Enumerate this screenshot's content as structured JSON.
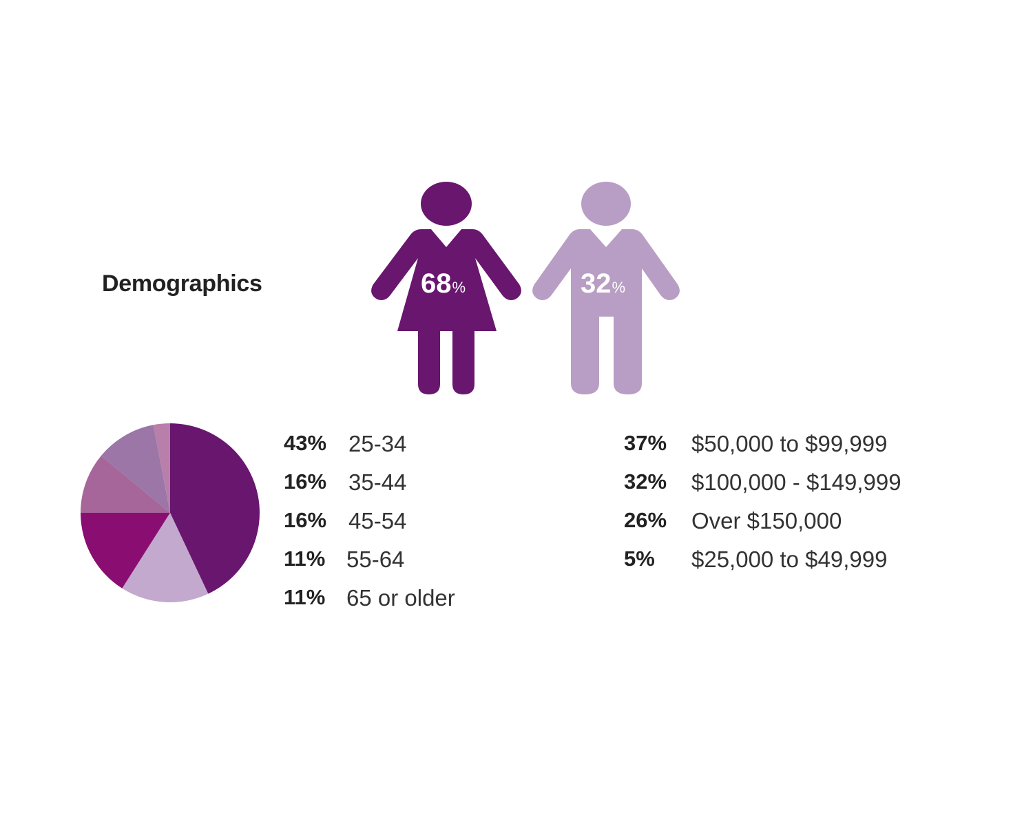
{
  "title": "Demographics",
  "colors": {
    "female": "#69166f",
    "male": "#b89ec4",
    "pie": [
      "#69166f",
      "#c2a9cd",
      "#8a0e72",
      "#a7669a",
      "#9b76a7",
      "#b87fab"
    ]
  },
  "gender": {
    "female": {
      "value": "68",
      "unit": "%"
    },
    "male": {
      "value": "32",
      "unit": "%"
    }
  },
  "chart_data": {
    "type": "pie",
    "categories": [
      "25-34",
      "35-44",
      "45-54",
      "55-64",
      "65 or older",
      ""
    ],
    "values": [
      43,
      16,
      16,
      11,
      11,
      3
    ],
    "start": "12 o'clock",
    "direction": "clockwise",
    "legend": "right",
    "title": ""
  },
  "age": [
    {
      "pct": "43%",
      "label": "25-34"
    },
    {
      "pct": "16%",
      "label": "35-44"
    },
    {
      "pct": "16%",
      "label": "45-54"
    },
    {
      "pct": "11%",
      "label": "55-64"
    },
    {
      "pct": "11%",
      "label": "65 or older"
    }
  ],
  "income": [
    {
      "pct": "37%",
      "label": "$50,000 to $99,999"
    },
    {
      "pct": "32%",
      "label": "$100,000 - $149,999"
    },
    {
      "pct": "26%",
      "label": "Over $150,000"
    },
    {
      "pct": "5%",
      "label": "$25,000 to $49,999"
    }
  ]
}
